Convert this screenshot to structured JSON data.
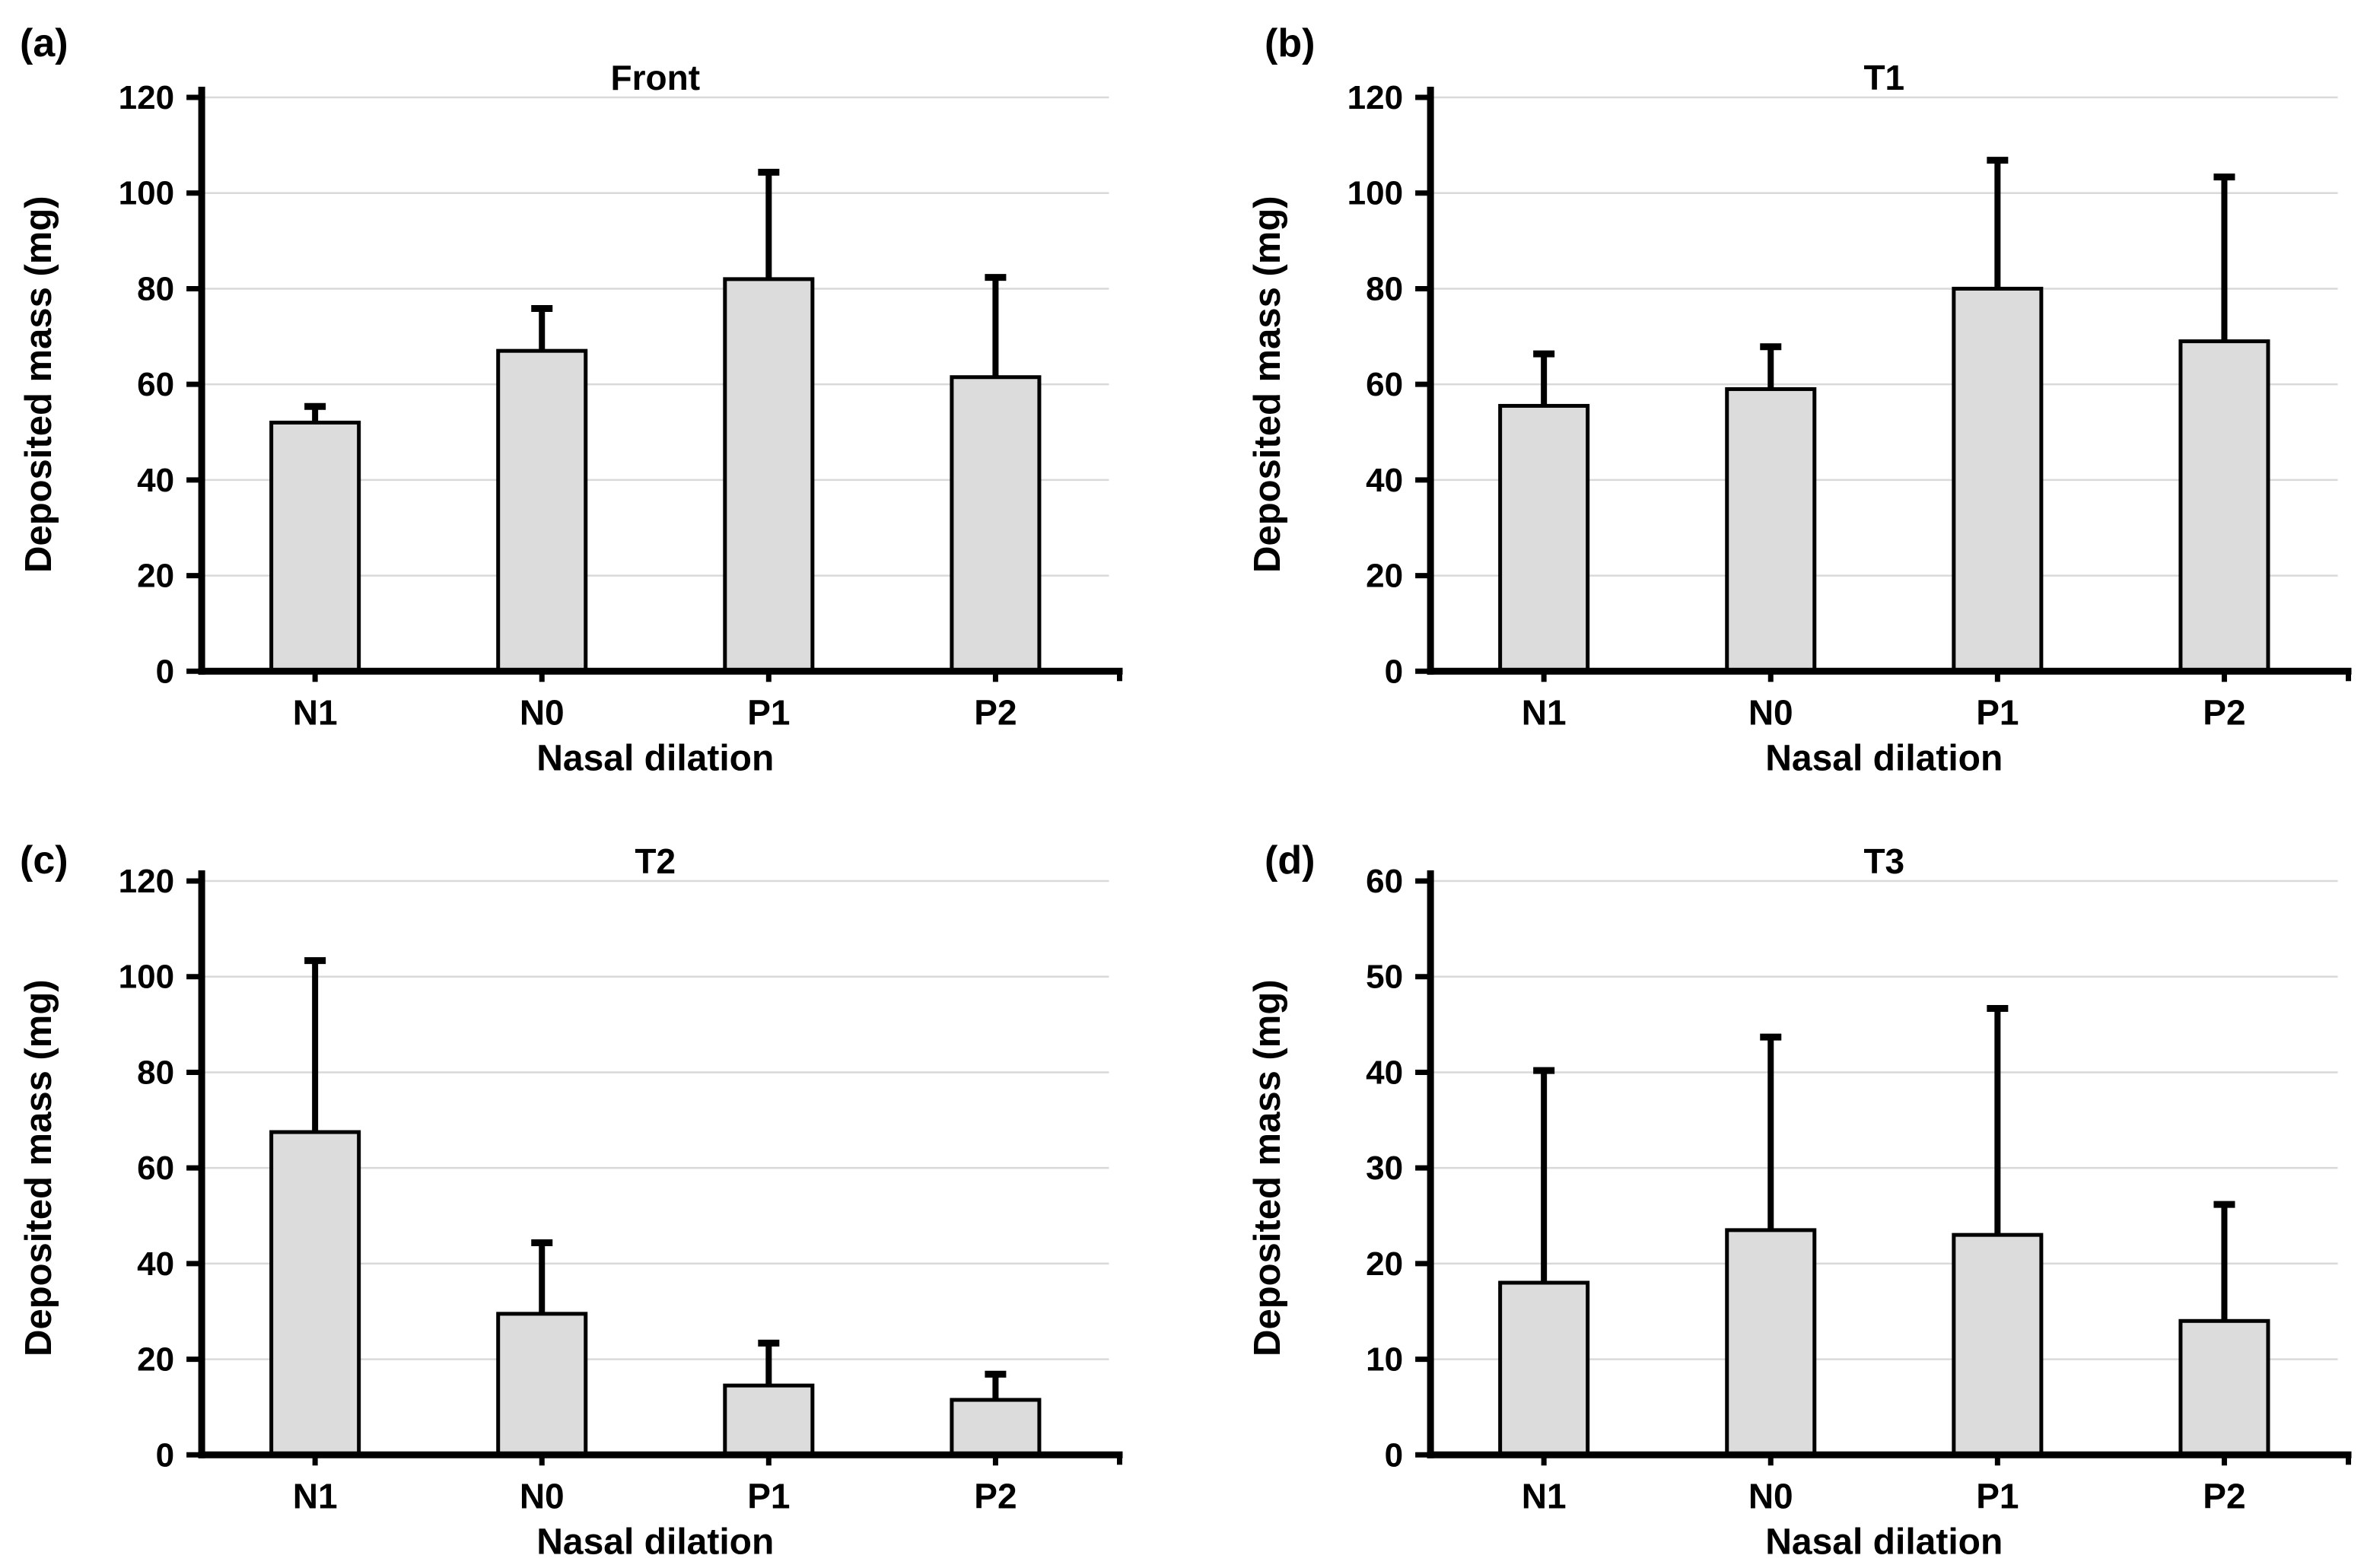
{
  "style": {
    "background": "#ffffff",
    "bar_fill": "#dcdcdc",
    "bar_stroke": "#000000",
    "grid_color": "#d9d9d9",
    "axis_color": "#000000"
  },
  "chart_data": [
    {
      "type": "bar",
      "panel_label": "(a)",
      "title": "Front",
      "xlabel": "Nasal dilation",
      "ylabel": "Deposited mass (mg)",
      "categories": [
        "N1",
        "N0",
        "P1",
        "P2"
      ],
      "values": [
        52,
        67,
        82,
        61.5
      ],
      "errors_upper": [
        4,
        9.5,
        23,
        21.5
      ],
      "ylim": [
        0,
        120
      ],
      "yticks": [
        0,
        20,
        40,
        60,
        80,
        100,
        120
      ],
      "grid": true,
      "legend": null
    },
    {
      "type": "bar",
      "panel_label": "(b)",
      "title": "T1",
      "xlabel": "Nasal dilation",
      "ylabel": "Deposited mass (mg)",
      "categories": [
        "N1",
        "N0",
        "P1",
        "P2"
      ],
      "values": [
        55.5,
        59,
        80,
        69
      ],
      "errors_upper": [
        11.5,
        9.5,
        27.5,
        35
      ],
      "ylim": [
        0,
        120
      ],
      "yticks": [
        0,
        20,
        40,
        60,
        80,
        100,
        120
      ],
      "grid": true,
      "legend": null
    },
    {
      "type": "bar",
      "panel_label": "(c)",
      "title": "T2",
      "xlabel": "Nasal dilation",
      "ylabel": "Deposited mass (mg)",
      "categories": [
        "N1",
        "N0",
        "P1",
        "P2"
      ],
      "values": [
        67.5,
        29.5,
        14.5,
        11.5
      ],
      "errors_upper": [
        36.5,
        15.5,
        9.5,
        6
      ],
      "ylim": [
        0,
        120
      ],
      "yticks": [
        0,
        20,
        40,
        60,
        80,
        100,
        120
      ],
      "grid": true,
      "legend": null
    },
    {
      "type": "bar",
      "panel_label": "(d)",
      "title": "T3",
      "xlabel": "Nasal dilation",
      "ylabel": "Deposited mass (mg)",
      "categories": [
        "N1",
        "N0",
        "P1",
        "P2"
      ],
      "values": [
        18,
        23.5,
        23,
        14
      ],
      "errors_upper": [
        22.5,
        20.5,
        24,
        12.5
      ],
      "ylim": [
        0,
        60
      ],
      "yticks": [
        0,
        10,
        20,
        30,
        40,
        50,
        60
      ],
      "grid": true,
      "legend": null
    }
  ]
}
